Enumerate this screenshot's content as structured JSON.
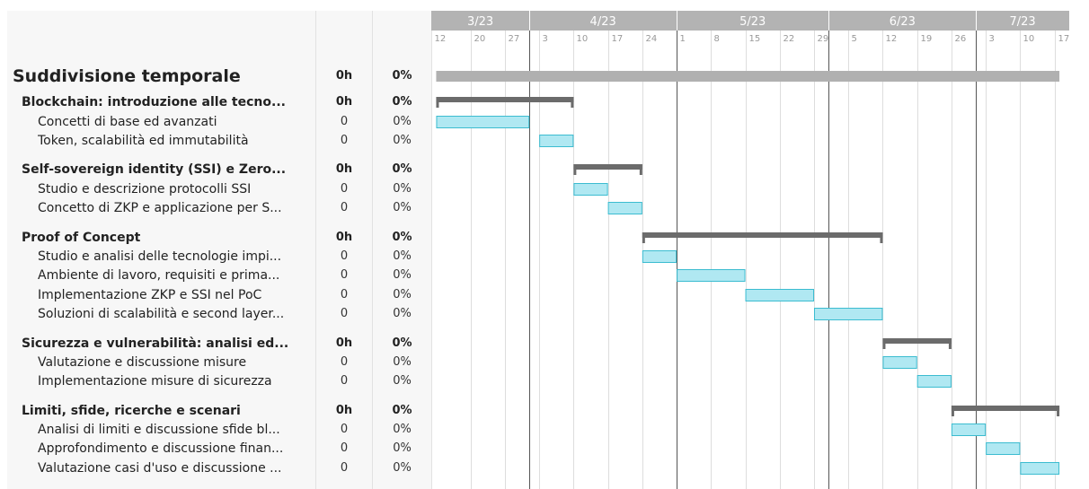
{
  "columns": {
    "hours": "",
    "percent": ""
  },
  "colors": {
    "month_header_bg": "#b3b3b3",
    "summary_bar": "#b0b0b0",
    "group_bar": "#6b6b6b",
    "task_fill": "#b0e8f2",
    "task_border": "#3bbcd0",
    "grid_line": "#dddddd",
    "month_line": "#555555"
  },
  "rows": [
    {
      "type": "title",
      "name": "Suddivisione temporale",
      "hours": "0h",
      "pct": "0%"
    },
    {
      "type": "group",
      "name": "Blockchain: introduzione alle tecno...",
      "hours": "0h",
      "pct": "0%"
    },
    {
      "type": "task",
      "name": "Concetti di base ed avanzati",
      "hours": "0",
      "pct": "0%"
    },
    {
      "type": "task",
      "name": "Token, scalabilità ed immutabilità",
      "hours": "0",
      "pct": "0%"
    },
    {
      "type": "group",
      "name": "Self-sovereign identity (SSI) e Zero...",
      "hours": "0h",
      "pct": "0%"
    },
    {
      "type": "task",
      "name": "Studio e descrizione protocolli SSI",
      "hours": "0",
      "pct": "0%"
    },
    {
      "type": "task",
      "name": "Concetto di ZKP e applicazione per S...",
      "hours": "0",
      "pct": "0%"
    },
    {
      "type": "group",
      "name": "Proof of Concept",
      "hours": "0h",
      "pct": "0%"
    },
    {
      "type": "task",
      "name": "Studio e analisi delle tecnologie impi...",
      "hours": "0",
      "pct": "0%"
    },
    {
      "type": "task",
      "name": "Ambiente di lavoro, requisiti e prima...",
      "hours": "0",
      "pct": "0%"
    },
    {
      "type": "task",
      "name": "Implementazione ZKP e SSI nel PoC",
      "hours": "0",
      "pct": "0%"
    },
    {
      "type": "task",
      "name": "Soluzioni di scalabilità e second layer...",
      "hours": "0",
      "pct": "0%"
    },
    {
      "type": "group",
      "name": "Sicurezza e vulnerabilità: analisi ed...",
      "hours": "0h",
      "pct": "0%"
    },
    {
      "type": "task",
      "name": "Valutazione e discussione misure",
      "hours": "0",
      "pct": "0%"
    },
    {
      "type": "task",
      "name": "Implementazione misure di sicurezza",
      "hours": "0",
      "pct": "0%"
    },
    {
      "type": "group",
      "name": "Limiti, sfide, ricerche e scenari",
      "hours": "0h",
      "pct": "0%"
    },
    {
      "type": "task",
      "name": "Analisi di limiti e discussione sfide bl...",
      "hours": "0",
      "pct": "0%"
    },
    {
      "type": "task",
      "name": "Approfondimento e discussione finan...",
      "hours": "0",
      "pct": "0%"
    },
    {
      "type": "task",
      "name": "Valutazione casi d'uso e discussione ...",
      "hours": "0",
      "pct": "0%"
    }
  ],
  "chart_data": {
    "type": "gantt",
    "x_axis": {
      "range": [
        "2023-03-12",
        "2023-07-20"
      ],
      "months": [
        {
          "label": "3/23",
          "start": "2023-03-12",
          "end": "2023-04-01"
        },
        {
          "label": "4/23",
          "start": "2023-04-01",
          "end": "2023-05-01"
        },
        {
          "label": "5/23",
          "start": "2023-05-01",
          "end": "2023-06-01"
        },
        {
          "label": "6/23",
          "start": "2023-06-01",
          "end": "2023-07-01"
        },
        {
          "label": "7/23",
          "start": "2023-07-01",
          "end": "2023-07-20"
        }
      ],
      "week_ticks": [
        {
          "label": "12",
          "date": "2023-03-12"
        },
        {
          "label": "20",
          "date": "2023-03-20"
        },
        {
          "label": "27",
          "date": "2023-03-27"
        },
        {
          "label": "3",
          "date": "2023-04-03"
        },
        {
          "label": "10",
          "date": "2023-04-10"
        },
        {
          "label": "17",
          "date": "2023-04-17"
        },
        {
          "label": "24",
          "date": "2023-04-24"
        },
        {
          "label": "1",
          "date": "2023-05-01"
        },
        {
          "label": "8",
          "date": "2023-05-08"
        },
        {
          "label": "15",
          "date": "2023-05-15"
        },
        {
          "label": "22",
          "date": "2023-05-22"
        },
        {
          "label": "29",
          "date": "2023-05-29"
        },
        {
          "label": "5",
          "date": "2023-06-05"
        },
        {
          "label": "12",
          "date": "2023-06-12"
        },
        {
          "label": "19",
          "date": "2023-06-19"
        },
        {
          "label": "26",
          "date": "2023-06-26"
        },
        {
          "label": "3",
          "date": "2023-07-03"
        },
        {
          "label": "10",
          "date": "2023-07-10"
        },
        {
          "label": "17",
          "date": "2023-07-17"
        }
      ]
    },
    "bars": [
      {
        "kind": "summary",
        "start": "2023-03-13",
        "end": "2023-07-18"
      },
      {
        "kind": "group",
        "start": "2023-03-13",
        "end": "2023-04-10"
      },
      {
        "kind": "task",
        "start": "2023-03-13",
        "end": "2023-04-01"
      },
      {
        "kind": "task",
        "start": "2023-04-03",
        "end": "2023-04-10"
      },
      {
        "kind": "group",
        "start": "2023-04-10",
        "end": "2023-04-24"
      },
      {
        "kind": "task",
        "start": "2023-04-10",
        "end": "2023-04-17"
      },
      {
        "kind": "task",
        "start": "2023-04-17",
        "end": "2023-04-24"
      },
      {
        "kind": "group",
        "start": "2023-04-24",
        "end": "2023-06-12"
      },
      {
        "kind": "task",
        "start": "2023-04-24",
        "end": "2023-05-01"
      },
      {
        "kind": "task",
        "start": "2023-05-01",
        "end": "2023-05-15"
      },
      {
        "kind": "task",
        "start": "2023-05-15",
        "end": "2023-05-29"
      },
      {
        "kind": "task",
        "start": "2023-05-29",
        "end": "2023-06-12"
      },
      {
        "kind": "group",
        "start": "2023-06-12",
        "end": "2023-06-26"
      },
      {
        "kind": "task",
        "start": "2023-06-12",
        "end": "2023-06-19"
      },
      {
        "kind": "task",
        "start": "2023-06-19",
        "end": "2023-06-26"
      },
      {
        "kind": "group",
        "start": "2023-06-26",
        "end": "2023-07-18"
      },
      {
        "kind": "task",
        "start": "2023-06-26",
        "end": "2023-07-03"
      },
      {
        "kind": "task",
        "start": "2023-07-03",
        "end": "2023-07-10"
      },
      {
        "kind": "task",
        "start": "2023-07-10",
        "end": "2023-07-18"
      }
    ]
  }
}
